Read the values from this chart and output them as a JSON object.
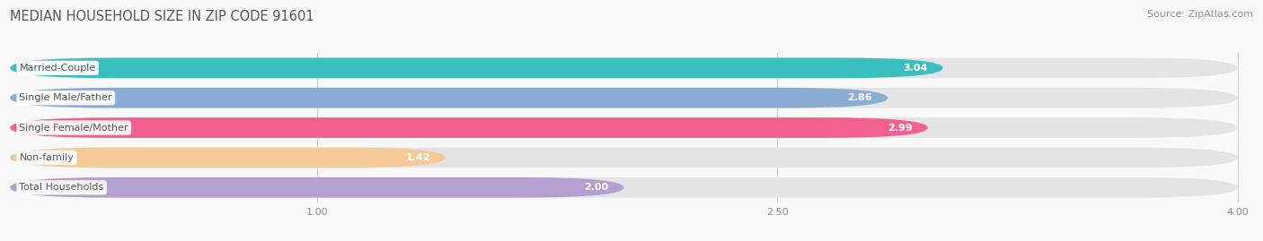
{
  "title": "MEDIAN HOUSEHOLD SIZE IN ZIP CODE 91601",
  "source": "Source: ZipAtlas.com",
  "categories": [
    "Married-Couple",
    "Single Male/Father",
    "Single Female/Mother",
    "Non-family",
    "Total Households"
  ],
  "values": [
    3.04,
    2.86,
    2.99,
    1.42,
    2.0
  ],
  "bar_colors": [
    "#3abfbf",
    "#8aadd4",
    "#f26090",
    "#f5ca98",
    "#b3a0d0"
  ],
  "bg_bar_color": "#e4e4e4",
  "xlim_min": 0.0,
  "xlim_max": 4.0,
  "xticks": [
    1.0,
    2.5,
    4.0
  ],
  "background_color": "#f8f8f8",
  "title_fontsize": 10.5,
  "source_fontsize": 8,
  "value_fontsize": 8,
  "label_fontsize": 8,
  "bar_height": 0.68,
  "rounding": 0.34,
  "grid_color": "#d0d0d0",
  "tick_color": "#888888",
  "title_color": "#555555",
  "source_color": "#999999",
  "label_text_color": "#555555"
}
